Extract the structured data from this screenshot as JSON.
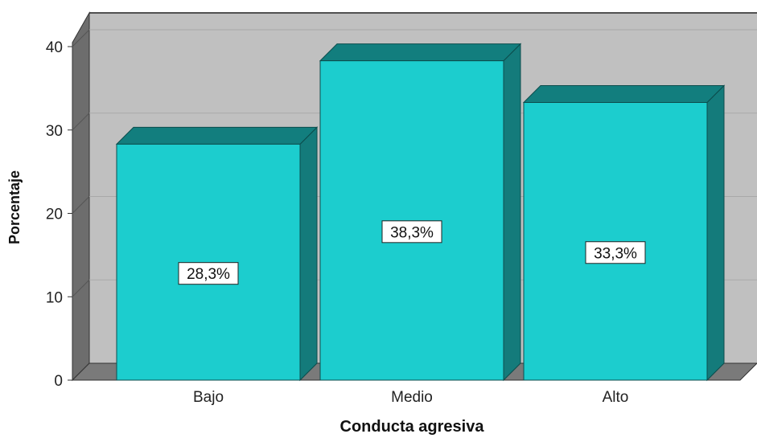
{
  "chart_data": {
    "type": "bar",
    "style": "3d",
    "categories": [
      "Bajo",
      "Medio",
      "Alto"
    ],
    "values": [
      28.3,
      38.3,
      33.3
    ],
    "data_labels": [
      "28,3%",
      "38,3%",
      "33,3%"
    ],
    "xlabel": "Conducta agresiva",
    "ylabel": "Porcentaje",
    "ylim": [
      0,
      40
    ],
    "yticks": [
      "0",
      "10",
      "20",
      "30",
      "40"
    ],
    "grid": true,
    "legend": "none",
    "colors": {
      "bar_front": "#1ccdce",
      "bar_top": "#127e7e",
      "bar_side": "#147b7b",
      "plot_background": "#c0c0c0",
      "floor": "#7a7a7a",
      "side_wall": "#6d6d6d",
      "gridline": "#a9a9a9"
    }
  }
}
